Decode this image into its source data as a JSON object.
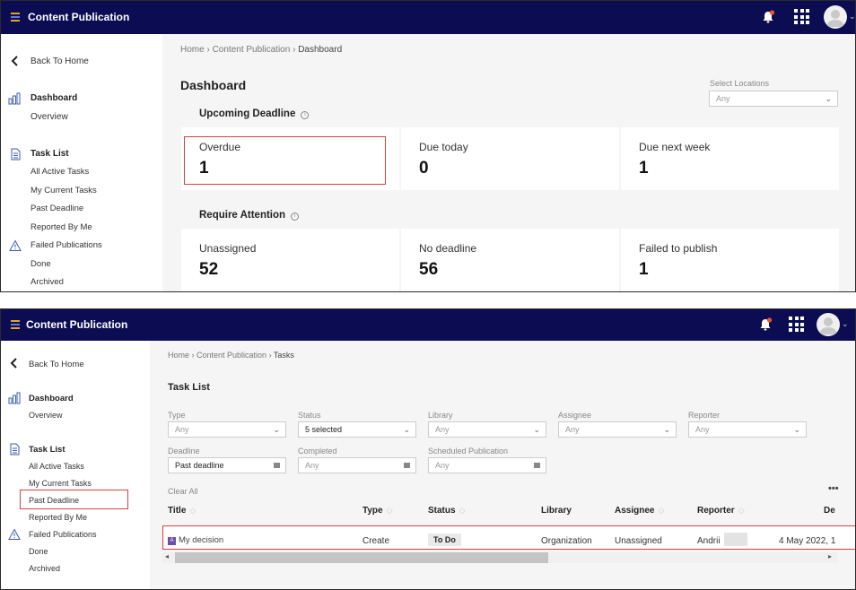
{
  "app": {
    "title": "Content Publication"
  },
  "colors": {
    "topbar": "#0b0c52",
    "highlight": "#d94040",
    "notification": "#e8572e"
  },
  "dashboard": {
    "breadcrumb": [
      "Home",
      "Content Publication",
      "Dashboard"
    ],
    "sidebar": {
      "back": "Back To Home",
      "dashboard": "Dashboard",
      "overview": "Overview",
      "task_list": "Task List",
      "items": [
        "All Active Tasks",
        "My Current Tasks",
        "Past Deadline",
        "Reported By Me"
      ],
      "failed": "Failed Publications",
      "done": "Done",
      "archived": "Archived"
    },
    "title": "Dashboard",
    "locations": {
      "label": "Select Locations",
      "value": "Any"
    },
    "upcoming": {
      "title": "Upcoming Deadline",
      "cards": [
        {
          "label": "Overdue",
          "value": "1"
        },
        {
          "label": "Due today",
          "value": "0"
        },
        {
          "label": "Due next week",
          "value": "1"
        }
      ]
    },
    "attention": {
      "title": "Require Attention",
      "cards": [
        {
          "label": "Unassigned",
          "value": "52"
        },
        {
          "label": "No deadline",
          "value": "56"
        },
        {
          "label": "Failed to publish",
          "value": "1"
        }
      ]
    }
  },
  "tasks": {
    "breadcrumb": [
      "Home",
      "Content Publication",
      "Tasks"
    ],
    "title": "Task List",
    "filters": [
      {
        "label": "Type",
        "value": "Any"
      },
      {
        "label": "Status",
        "value": "5 selected"
      },
      {
        "label": "Library",
        "value": "Any"
      },
      {
        "label": "Assignee",
        "value": "Any"
      },
      {
        "label": "Reporter",
        "value": "Any"
      },
      {
        "label": "Deadline",
        "value": "Past deadline"
      },
      {
        "label": "Completed",
        "value": "Any"
      },
      {
        "label": "Scheduled Publication",
        "value": "Any"
      }
    ],
    "clear_all": "Clear All",
    "more": "•••",
    "columns": [
      "Title",
      "Type",
      "Status",
      "Library",
      "Assignee",
      "Reporter",
      "De"
    ],
    "row": {
      "title": "My decision",
      "type": "Create",
      "status": "To Do",
      "library": "Organization",
      "assignee": "Unassigned",
      "reporter": "Andrii",
      "deadline": "4 May 2022, 1"
    }
  }
}
